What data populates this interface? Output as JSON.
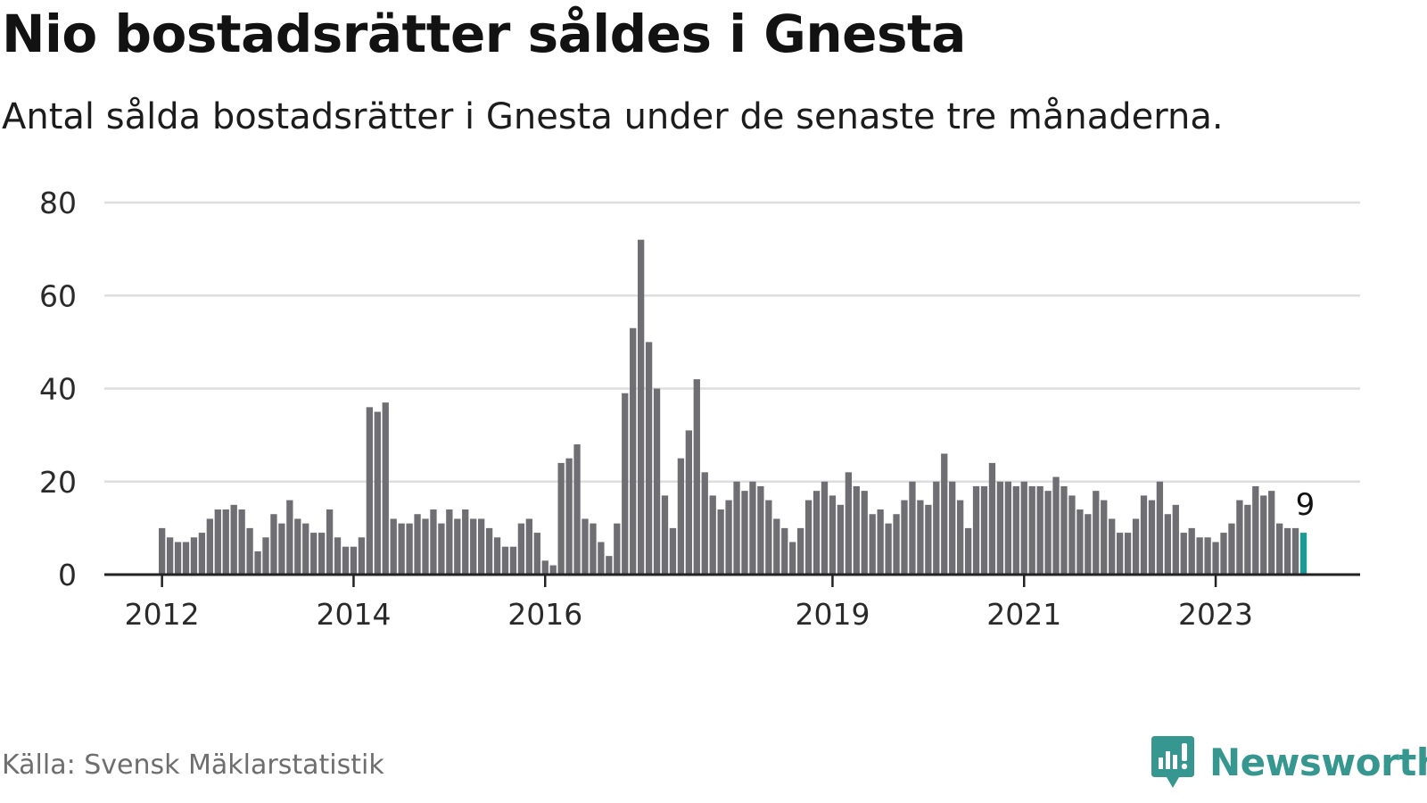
{
  "header": {
    "title": "Nio bostadsrätter såldes i Gnesta",
    "subtitle": "Antal sålda bostadsrätter i Gnesta under de senaste tre månaderna."
  },
  "footer": {
    "source": "Källa: Svensk Mäklarstatistik",
    "brand": "Newsworthy"
  },
  "colors": {
    "bar": "#6f6e73",
    "highlight": "#1a9c96",
    "grid": "#dedede",
    "axis": "#222222",
    "brand": "#35978f"
  },
  "chart_data": {
    "type": "bar",
    "title": "Nio bostadsrätter såldes i Gnesta",
    "subtitle": "Antal sålda bostadsrätter i Gnesta under de senaste tre månaderna.",
    "xlabel": "",
    "ylabel": "",
    "ylim": [
      0,
      80
    ],
    "yticks": [
      0,
      20,
      40,
      60,
      80
    ],
    "grid": true,
    "x_tick_labels": [
      {
        "label": "2012",
        "index": 0
      },
      {
        "label": "2014",
        "index": 24
      },
      {
        "label": "2016",
        "index": 48
      },
      {
        "label": "2019",
        "index": 84
      },
      {
        "label": "2021",
        "index": 108
      },
      {
        "label": "2023",
        "index": 132
      }
    ],
    "highlight_index": 143,
    "highlight_label": "9",
    "values": [
      10,
      8,
      7,
      7,
      8,
      9,
      12,
      14,
      14,
      15,
      14,
      10,
      5,
      8,
      13,
      11,
      16,
      12,
      11,
      9,
      9,
      14,
      8,
      6,
      6,
      8,
      36,
      35,
      37,
      12,
      11,
      11,
      13,
      12,
      14,
      11,
      14,
      12,
      14,
      12,
      12,
      10,
      8,
      6,
      6,
      11,
      12,
      9,
      3,
      2,
      24,
      25,
      28,
      12,
      11,
      7,
      4,
      11,
      39,
      53,
      72,
      50,
      40,
      17,
      10,
      25,
      31,
      42,
      22,
      17,
      14,
      16,
      20,
      18,
      20,
      19,
      16,
      12,
      10,
      7,
      10,
      16,
      18,
      20,
      17,
      15,
      22,
      19,
      18,
      13,
      14,
      11,
      13,
      16,
      20,
      16,
      15,
      20,
      26,
      20,
      16,
      10,
      19,
      19,
      24,
      20,
      20,
      19,
      20,
      19,
      19,
      18,
      21,
      19,
      17,
      14,
      13,
      18,
      16,
      12,
      9,
      9,
      12,
      17,
      16,
      20,
      13,
      15,
      9,
      10,
      8,
      8,
      7,
      9,
      11,
      16,
      15,
      19,
      17,
      18,
      11,
      10,
      10,
      9
    ]
  }
}
